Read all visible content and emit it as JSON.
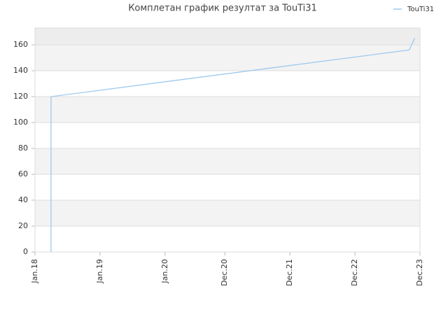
{
  "chart_data": {
    "type": "line",
    "title": "Комплетан график резултат за TouTi31",
    "x": [
      "2018-04",
      "2018-04",
      "2018-04",
      "2023-10",
      "2023-11"
    ],
    "series": [
      {
        "name": "TouTi31",
        "color": "#9ec9ef",
        "values": [
          0,
          10,
          120,
          156,
          165
        ]
      }
    ],
    "xlim": [
      "2018-01",
      "2023-12"
    ],
    "xticks": [
      {
        "value": "2018-01",
        "label": "Jan.18"
      },
      {
        "value": "2019-01",
        "label": "Jan.19"
      },
      {
        "value": "2020-01",
        "label": "Jan.20"
      },
      {
        "value": "2020-12",
        "label": "Dec.20"
      },
      {
        "value": "2021-12",
        "label": "Dec.21"
      },
      {
        "value": "2022-12",
        "label": "Dec.22"
      },
      {
        "value": "2023-12",
        "label": "Dec.23"
      }
    ],
    "ylim": [
      0,
      173
    ],
    "yticks": [
      0,
      20,
      40,
      60,
      80,
      100,
      120,
      140,
      160
    ],
    "grid": true,
    "legend": "top-right"
  }
}
